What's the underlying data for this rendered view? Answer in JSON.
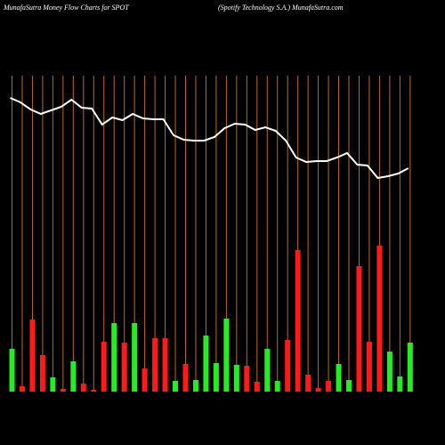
{
  "chart_data": {
    "type": "bar",
    "title": "MunafaSutra  Money Flow  Charts for SPOT",
    "subtitle": "(Spotify Technology S.A.) MunafaSutra.com",
    "values": [
      48,
      6,
      81,
      41,
      16,
      3,
      34,
      9,
      2,
      56,
      77,
      55,
      77,
      26,
      60,
      60,
      12,
      31,
      13,
      63,
      32,
      82,
      30,
      29,
      11,
      48,
      12,
      58,
      159,
      19,
      4,
      12,
      31,
      13,
      141,
      56,
      164,
      45,
      17,
      55
    ],
    "colors": [
      "#22ee22",
      "#ff1a1a",
      "#ff1a1a",
      "#ff1a1a",
      "#22ee22",
      "#ff1a1a",
      "#22ee22",
      "#ff1a1a",
      "#ff1a1a",
      "#ff1a1a",
      "#22ee22",
      "#ff1a1a",
      "#22ee22",
      "#ff1a1a",
      "#ff1a1a",
      "#ff1a1a",
      "#22ee22",
      "#ff1a1a",
      "#22ee22",
      "#22ee22",
      "#22ee22",
      "#22ee22",
      "#22ee22",
      "#ff1a1a",
      "#ff1a1a",
      "#22ee22",
      "#22ee22",
      "#ff1a1a",
      "#ff1a1a",
      "#ff1a1a",
      "#ff1a1a",
      "#ff1a1a",
      "#22ee22",
      "#22ee22",
      "#ff1a1a",
      "#ff1a1a",
      "#ff1a1a",
      "#22ee22",
      "#22ee22",
      "#22ee22"
    ],
    "line_values": [
      330,
      325,
      317,
      312,
      316,
      320,
      328,
      319,
      318,
      300,
      308,
      305,
      312,
      307,
      306,
      306,
      288,
      283,
      282,
      282,
      286,
      296,
      301,
      300,
      294,
      297,
      293,
      282,
      263,
      258,
      259,
      259,
      263,
      268,
      255,
      254,
      240,
      242,
      245,
      251
    ],
    "line_color": "#ffffff",
    "ylim": [
      0,
      360
    ]
  }
}
